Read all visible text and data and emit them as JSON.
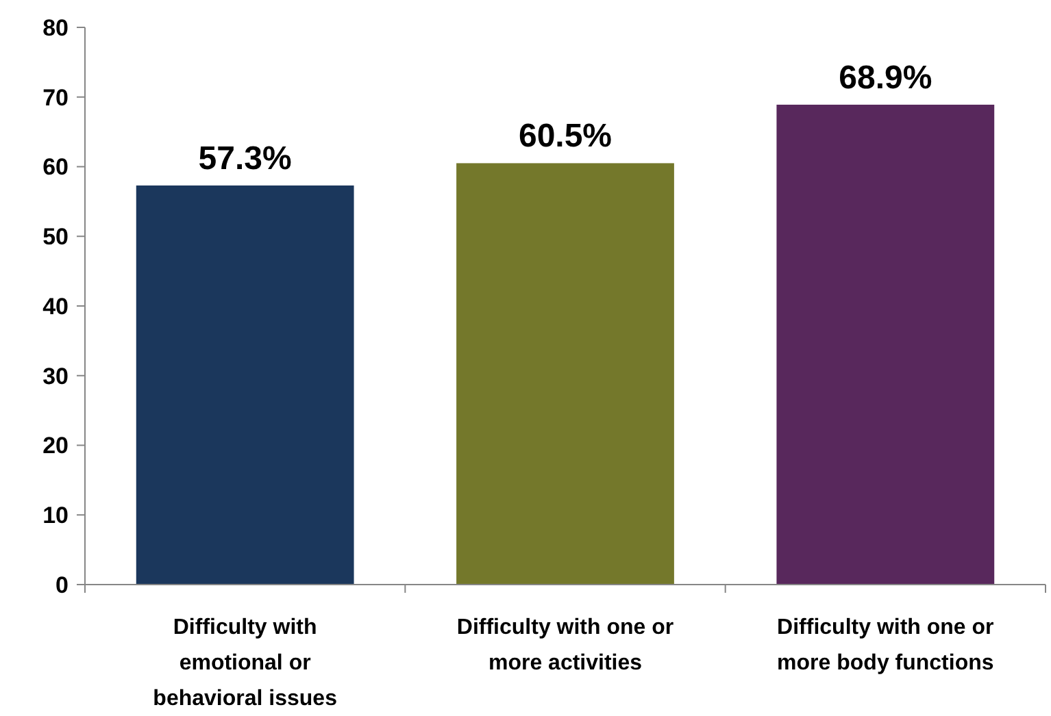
{
  "chart_data": {
    "type": "bar",
    "categories": [
      "Difficulty with emotional or behavioral issues",
      "Difficulty with one or more activities",
      "Difficulty with one or more body functions"
    ],
    "values": [
      57.3,
      60.5,
      68.9
    ],
    "colors": [
      "#1b375c",
      "#74782b",
      "#58285c"
    ],
    "value_labels": [
      "57.3%",
      "60.5%",
      "68.9%"
    ],
    "ylim": [
      0,
      80
    ],
    "yticks": [
      0,
      10,
      20,
      30,
      40,
      50,
      60,
      70,
      80
    ],
    "grid": false
  }
}
